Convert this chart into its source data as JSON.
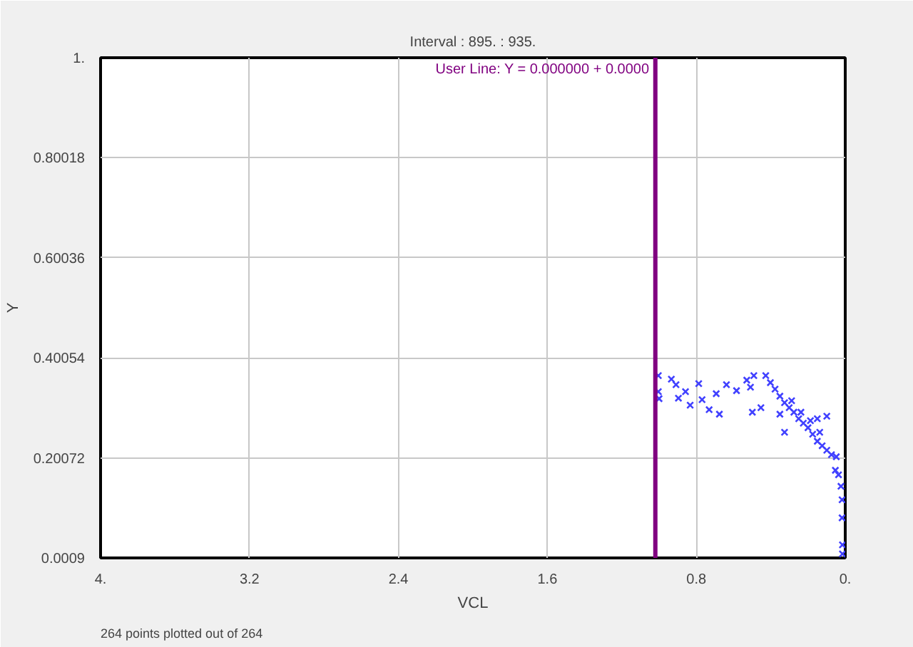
{
  "chart_data": {
    "type": "scatter",
    "title": "Interval : 895. : 935.",
    "xlabel": "VCL",
    "ylabel": "Y",
    "annotations": [
      "264 points plotted out of 264",
      {
        "text": "User Line: Y = 0.000000 + 0.0000",
        "x": 1.02,
        "y": 1
      }
    ],
    "xlim": [
      4,
      0
    ],
    "ylim": [
      0.0009,
      1
    ],
    "xticks": [
      {
        "value": 4,
        "label": "4."
      },
      3.2,
      2.4,
      1.6,
      0.8,
      {
        "value": 0,
        "label": "0."
      }
    ],
    "yticks": [
      0.0009,
      0.20072,
      0.40054,
      0.60036,
      0.80018,
      {
        "value": 1,
        "label": "1."
      }
    ],
    "grid": true,
    "marker": "cross",
    "ref_lines": [
      {
        "axis": "x",
        "value": 1.02,
        "color": "#800080"
      }
    ],
    "series": [
      {
        "color": "#4040ff",
        "x": [
          1.004,
          1.004,
          1.0,
          0.934,
          0.909,
          0.896,
          0.858,
          0.833,
          0.787,
          0.769,
          0.731,
          0.693,
          0.676,
          0.638,
          0.584,
          0.529,
          0.509,
          0.499,
          0.453,
          0.491,
          0.427,
          0.402,
          0.377,
          0.351,
          0.326,
          0.301,
          0.276,
          0.351,
          0.326,
          0.25,
          0.225,
          0.2,
          0.175,
          0.15,
          0.099,
          0.15,
          0.124,
          0.099,
          0.074,
          0.048,
          0.053,
          0.036,
          0.023,
          0.017,
          0.017,
          0.015,
          0.015,
          0.288,
          0.238,
          0.187,
          0.137
        ],
        "values": [
          0.365,
          0.333,
          0.319,
          0.358,
          0.347,
          0.32,
          0.333,
          0.306,
          0.349,
          0.317,
          0.297,
          0.329,
          0.288,
          0.347,
          0.335,
          0.356,
          0.342,
          0.292,
          0.301,
          0.365,
          0.365,
          0.351,
          0.338,
          0.324,
          0.311,
          0.301,
          0.292,
          0.288,
          0.252,
          0.279,
          0.27,
          0.261,
          0.248,
          0.279,
          0.284,
          0.234,
          0.225,
          0.216,
          0.207,
          0.203,
          0.176,
          0.167,
          0.144,
          0.117,
          0.081,
          0.027,
          0.009,
          0.315,
          0.292,
          0.275,
          0.252
        ]
      }
    ]
  }
}
